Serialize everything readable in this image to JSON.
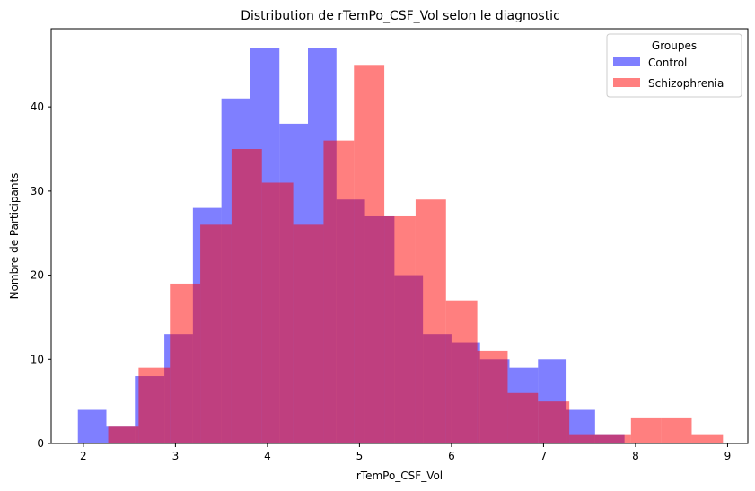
{
  "chart_data": {
    "type": "histogram",
    "title": "Distribution de rTemPo_CSF_Vol selon le diagnostic",
    "xlabel": "rTemPo_CSF_Vol",
    "ylabel": "Nombre de Participants",
    "xlim": [
      1.65,
      9.22
    ],
    "ylim": [
      0,
      49.3
    ],
    "xticks": [
      2,
      3,
      4,
      5,
      6,
      7,
      8,
      9
    ],
    "yticks": [
      0,
      10,
      20,
      30,
      40
    ],
    "legend": {
      "title": "Groupes",
      "placement": "top-right"
    },
    "series": [
      {
        "name": "Control",
        "color": "#0000ff",
        "opacity": 0.5,
        "bins": [
          [
            1.94,
            2.25,
            4
          ],
          [
            2.25,
            2.56,
            2
          ],
          [
            2.56,
            2.88,
            8
          ],
          [
            2.88,
            3.19,
            13
          ],
          [
            3.19,
            3.5,
            28
          ],
          [
            3.5,
            3.81,
            41
          ],
          [
            3.81,
            4.13,
            47
          ],
          [
            4.13,
            4.44,
            38
          ],
          [
            4.44,
            4.75,
            47
          ],
          [
            4.75,
            5.06,
            29
          ],
          [
            5.06,
            5.38,
            27
          ],
          [
            5.38,
            5.69,
            20
          ],
          [
            5.69,
            6.0,
            13
          ],
          [
            6.0,
            6.31,
            12
          ],
          [
            6.31,
            6.63,
            10
          ],
          [
            6.63,
            6.94,
            9
          ],
          [
            6.94,
            7.25,
            10
          ],
          [
            7.25,
            7.56,
            4
          ],
          [
            7.56,
            7.88,
            1
          ]
        ]
      },
      {
        "name": "Schizophrenia",
        "color": "#ff0000",
        "opacity": 0.5,
        "bins": [
          [
            2.27,
            2.6,
            2
          ],
          [
            2.6,
            2.94,
            9
          ],
          [
            2.94,
            3.27,
            19
          ],
          [
            3.27,
            3.61,
            26
          ],
          [
            3.61,
            3.94,
            35
          ],
          [
            3.94,
            4.28,
            31
          ],
          [
            4.28,
            4.61,
            26
          ],
          [
            4.61,
            4.94,
            36
          ],
          [
            4.94,
            5.27,
            45
          ],
          [
            5.27,
            5.61,
            27
          ],
          [
            5.61,
            5.94,
            29
          ],
          [
            5.94,
            6.28,
            17
          ],
          [
            6.28,
            6.61,
            11
          ],
          [
            6.61,
            6.94,
            6
          ],
          [
            6.94,
            7.28,
            5
          ],
          [
            7.28,
            7.61,
            1
          ],
          [
            7.61,
            7.95,
            1
          ],
          [
            7.95,
            8.28,
            3
          ],
          [
            8.28,
            8.61,
            3
          ],
          [
            8.61,
            8.95,
            1
          ]
        ]
      }
    ]
  }
}
